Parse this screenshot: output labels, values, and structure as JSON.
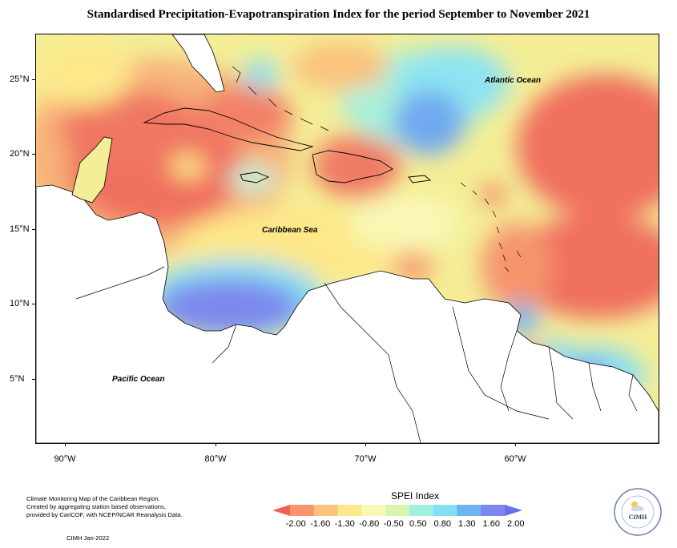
{
  "title": "Standardised Precipitation-Evapotranspiration Index for the period September to November 2021",
  "map": {
    "lat_labels": [
      "25°N",
      "20°N",
      "15°N",
      "10°N",
      "5°N"
    ],
    "lon_labels": [
      "90°W",
      "80°W",
      "70°W",
      "60°W"
    ],
    "ocean_labels": {
      "atlantic": "Atlantic Ocean",
      "caribbean": "Caribbean Sea",
      "pacific": "Pacific Ocean"
    }
  },
  "legend": {
    "title": "SPEI Index",
    "values": [
      "-2.00",
      "-1.60",
      "-1.30",
      "-0.80",
      "-0.50",
      "0.50",
      "0.80",
      "1.30",
      "1.60",
      "2.00"
    ],
    "colors": [
      "#f0605a",
      "#f6946e",
      "#fac27d",
      "#fde88a",
      "#f9f8b6",
      "#d8f5b0",
      "#9ff0dc",
      "#85def6",
      "#6fb3f0",
      "#7d88ec",
      "#6a6fe8"
    ]
  },
  "credits": {
    "lines": [
      "Climate Monitoring Map of the Caribbean Region.",
      "Created by aggregating station based observations,",
      "provided by CariCOF, with NCEP/NCAR Reanalysis Data."
    ],
    "date": "CIMH Jan-2022"
  },
  "logo": {
    "text": "CIMH"
  }
}
